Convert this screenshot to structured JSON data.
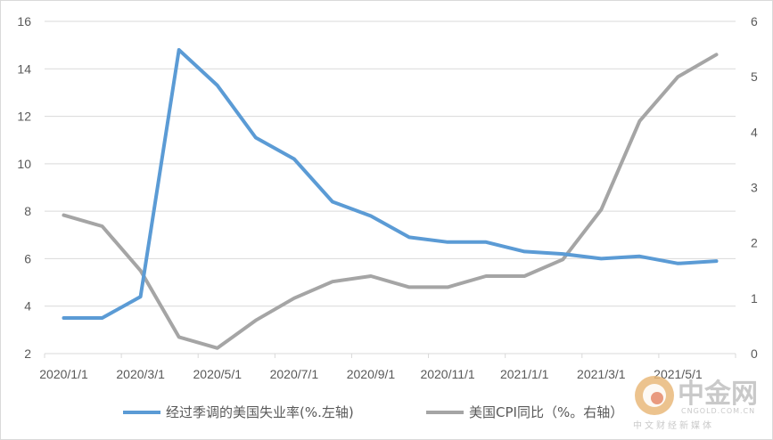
{
  "chart_data": {
    "type": "line",
    "categories": [
      "2020/1/1",
      "2020/2/1",
      "2020/3/1",
      "2020/4/1",
      "2020/5/1",
      "2020/6/1",
      "2020/7/1",
      "2020/8/1",
      "2020/9/1",
      "2020/10/1",
      "2020/11/1",
      "2020/12/1",
      "2021/1/1",
      "2021/2/1",
      "2021/3/1",
      "2021/4/1",
      "2021/5/1",
      "2021/6/1"
    ],
    "x_tick_labels": [
      "2020/1/1",
      "2020/3/1",
      "2020/5/1",
      "2020/7/1",
      "2020/9/1",
      "2020/11/1",
      "2021/1/1",
      "2021/3/1",
      "2021/5/1"
    ],
    "series": [
      {
        "name": "经过季调的美国失业率(%.左轴)",
        "axis": "left",
        "color": "#5b9bd5",
        "values": [
          3.5,
          3.5,
          4.4,
          14.8,
          13.3,
          11.1,
          10.2,
          8.4,
          7.8,
          6.9,
          6.7,
          6.7,
          6.3,
          6.2,
          6.0,
          6.1,
          5.8,
          5.9
        ]
      },
      {
        "name": "美国CPI同比（%。右轴）",
        "axis": "right",
        "color": "#a5a5a5",
        "values": [
          2.5,
          2.3,
          1.5,
          0.3,
          0.1,
          0.6,
          1.0,
          1.3,
          1.4,
          1.2,
          1.2,
          1.4,
          1.4,
          1.7,
          2.6,
          4.2,
          5.0,
          5.4
        ]
      }
    ],
    "y_left": {
      "ylim": [
        2,
        16
      ],
      "ticks": [
        "2",
        "4",
        "6",
        "8",
        "10",
        "12",
        "14",
        "16"
      ]
    },
    "y_right": {
      "ylim": [
        0,
        6
      ],
      "ticks": [
        "0",
        "1",
        "2",
        "3",
        "4",
        "5",
        "6"
      ]
    },
    "grid": true,
    "legend": "bottom"
  },
  "watermark": {
    "name": "中金网",
    "url": "CNGOLD.COM.CN",
    "tagline": "中文财经新媒体"
  }
}
